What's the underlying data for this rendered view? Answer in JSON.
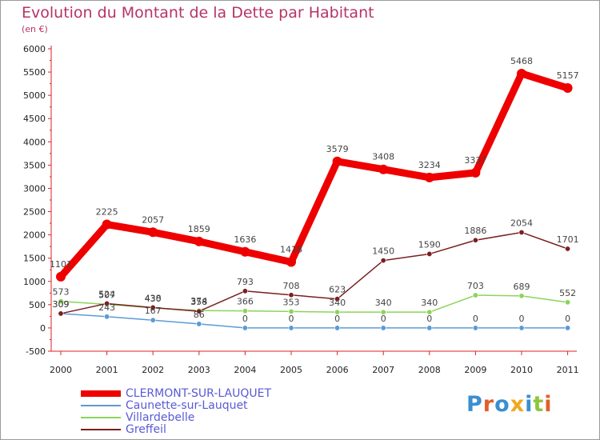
{
  "title": "Evolution du Montant de la Dette par Habitant",
  "subtitle": "(en €)",
  "logo": {
    "text": "Proxiti",
    "colors": [
      "#3a8fd0",
      "#e0602a",
      "#3a8fd0",
      "#f0a820",
      "#3a8fd0",
      "#8cc63f",
      "#e0602a"
    ]
  },
  "chart_data": {
    "type": "line",
    "x": [
      "2000",
      "2001",
      "2002",
      "2003",
      "2004",
      "2005",
      "2006",
      "2007",
      "2008",
      "2009",
      "2010",
      "2011"
    ],
    "y_ticks": [
      "-500",
      "0",
      "500",
      "1000",
      "1500",
      "2000",
      "2500",
      "3000",
      "3500",
      "4000",
      "4500",
      "5000",
      "5500",
      "6000"
    ],
    "ylim": [
      -500,
      6000
    ],
    "grid": false,
    "legend_position": "bottom-left",
    "series": [
      {
        "name": "CLERMONT-SUR-LAUQUET",
        "color": "#ee0000",
        "width": 9,
        "values": [
          1101,
          2225,
          2057,
          1859,
          1636,
          1418,
          3579,
          3408,
          3234,
          3337,
          5468,
          5157
        ],
        "labels": [
          "1101",
          "2225",
          "2057",
          "1859",
          "1636",
          "1418",
          "3579",
          "3408",
          "3234",
          "3337",
          "5468",
          "5157"
        ]
      },
      {
        "name": "Caunette-sur-Lauquet",
        "color": "#5b9bd5",
        "width": 1.5,
        "values": [
          309,
          243,
          167,
          86,
          0,
          0,
          0,
          0,
          0,
          0,
          0,
          0
        ],
        "labels": [
          "309",
          "243",
          "167",
          "86",
          "0",
          "0",
          "0",
          "0",
          "0",
          "0",
          "0",
          "0"
        ]
      },
      {
        "name": "Villardebelle",
        "color": "#8cd45a",
        "width": 1.5,
        "values": [
          573,
          507,
          430,
          374,
          366,
          353,
          340,
          340,
          340,
          703,
          689,
          552
        ],
        "labels": [
          "573",
          "507",
          "430",
          "374",
          "366",
          "353",
          "340",
          "340",
          "340",
          "703",
          "689",
          "552"
        ]
      },
      {
        "name": "Greffeil",
        "color": "#7a1f1f",
        "width": 1.5,
        "values": [
          309,
          524,
          438,
          358,
          793,
          708,
          623,
          1450,
          1590,
          1886,
          2054,
          1701
        ],
        "labels": [
          "309",
          "524",
          "438",
          "358",
          "793",
          "708",
          "623",
          "1450",
          "1590",
          "1886",
          "2054",
          "1701"
        ]
      }
    ]
  }
}
